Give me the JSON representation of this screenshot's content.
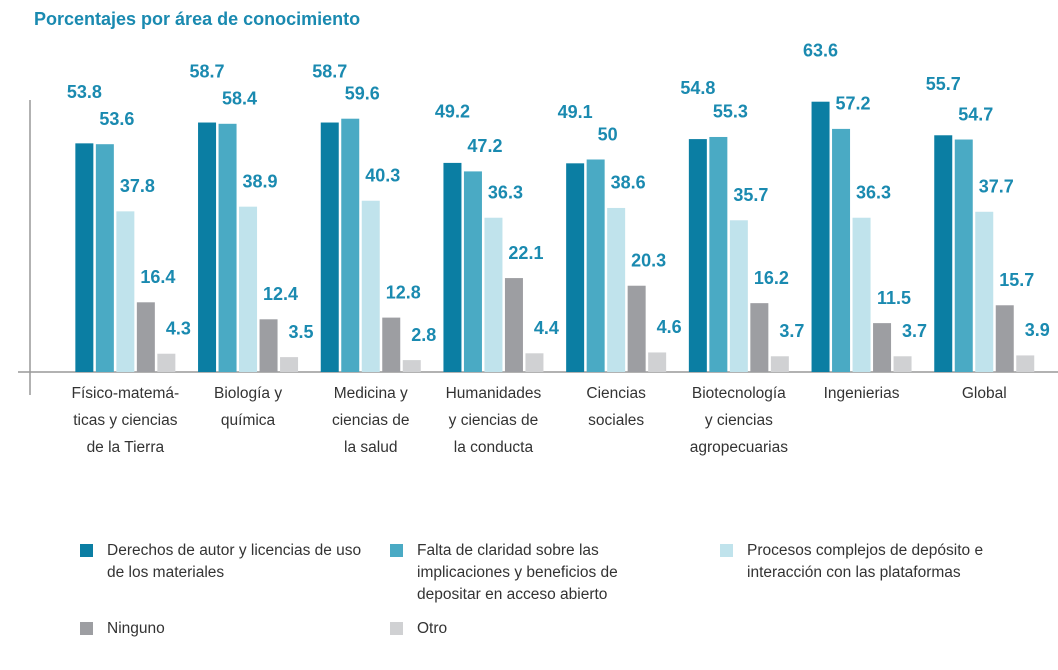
{
  "chart_data": {
    "type": "bar",
    "title": "Porcentajes por área de conocimiento",
    "categories": [
      [
        "Físico-matemá-",
        "ticas y ciencias",
        "de la Tierra"
      ],
      [
        "Biología y",
        "química"
      ],
      [
        "Medicina y",
        "ciencias de",
        "la salud"
      ],
      [
        "Humanidades",
        "y ciencias de",
        "la conducta"
      ],
      [
        "Ciencias",
        "sociales"
      ],
      [
        "Biotecnología",
        "y ciencias",
        "agropecuarias"
      ],
      [
        "Ingenierias"
      ],
      [
        "Global"
      ]
    ],
    "series": [
      {
        "name": "Derechos de autor y licencias de uso de los materiales",
        "color": "#0b7ea3",
        "values": [
          53.8,
          58.7,
          58.7,
          49.2,
          49.1,
          54.8,
          63.6,
          55.7
        ]
      },
      {
        "name": "Falta de claridad sobre las implicaciones y beneficios de depositar en acceso abierto",
        "color": "#4aaac4",
        "values": [
          53.6,
          58.4,
          59.6,
          47.2,
          50,
          55.3,
          57.2,
          54.7
        ]
      },
      {
        "name": "Procesos complejos de depósito e interacción con las plataformas",
        "color": "#c0e3ec",
        "values": [
          37.8,
          38.9,
          40.3,
          36.3,
          38.6,
          35.7,
          36.3,
          37.7
        ]
      },
      {
        "name": "Ninguno",
        "color": "#9d9ea2",
        "values": [
          16.4,
          12.4,
          12.8,
          22.1,
          20.3,
          16.2,
          11.5,
          15.7
        ]
      },
      {
        "name": "Otro",
        "color": "#d0d1d3",
        "values": [
          4.3,
          3.5,
          2.8,
          4.4,
          4.6,
          3.7,
          3.7,
          3.9
        ]
      }
    ],
    "ylim": [
      0,
      64
    ]
  }
}
